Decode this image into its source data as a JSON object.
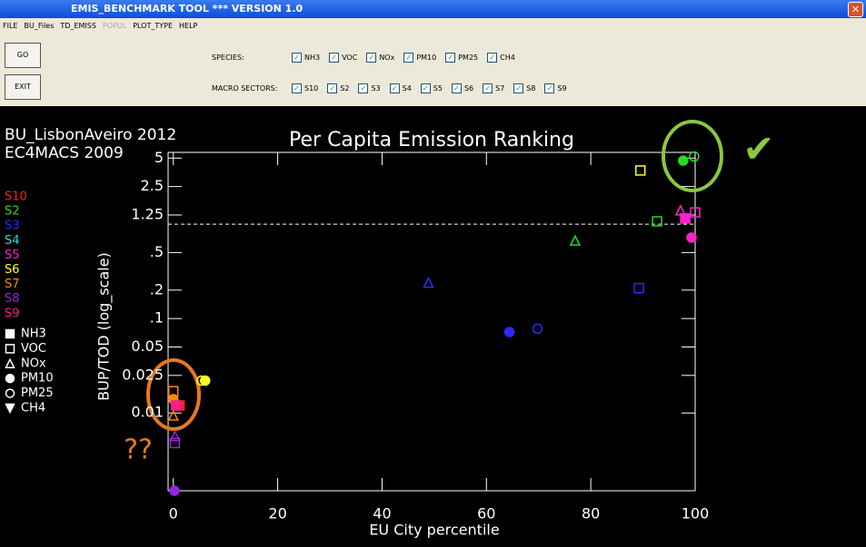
{
  "window": {
    "title": "EMIS_BENCHMARK TOOL *** VERSION 1.0"
  },
  "menu": [
    {
      "label": "FILE",
      "enabled": true
    },
    {
      "label": "BU_Files",
      "enabled": true
    },
    {
      "label": "TD_EMISS",
      "enabled": true
    },
    {
      "label": "POPUL",
      "enabled": false
    },
    {
      "label": "PLOT_TYPE",
      "enabled": true
    },
    {
      "label": "HELP",
      "enabled": true
    }
  ],
  "buttons": [
    "GO",
    "EXIT"
  ],
  "species_panel": {
    "label": "SPECIES:",
    "options": [
      {
        "label": "NH3",
        "checked": true
      },
      {
        "label": "VOC",
        "checked": true
      },
      {
        "label": "NOx",
        "checked": true
      },
      {
        "label": "PM10",
        "checked": true
      },
      {
        "label": "PM25",
        "checked": true
      },
      {
        "label": "CH4",
        "checked": true
      }
    ]
  },
  "sectors_panel": {
    "label": "MACRO SECTORS:",
    "options": [
      {
        "label": "S10",
        "checked": true
      },
      {
        "label": "S2",
        "checked": true
      },
      {
        "label": "S3",
        "checked": true
      },
      {
        "label": "S4",
        "checked": true
      },
      {
        "label": "S5",
        "checked": true
      },
      {
        "label": "S6",
        "checked": true
      },
      {
        "label": "S7",
        "checked": true
      },
      {
        "label": "S8",
        "checked": true
      },
      {
        "label": "S9",
        "checked": true
      }
    ]
  },
  "chart_data": {
    "type": "scatter",
    "title": "Per Capita Emission Ranking",
    "subtitle_lines": [
      "BU_LisbonAveiro 2012",
      "EC4MACS 2009"
    ],
    "xlabel": "EU City percentile",
    "ylabel": "BUP/TOD (log_scale)",
    "xlim": [
      -1,
      100
    ],
    "xticks": [
      0,
      20,
      40,
      60,
      80,
      100
    ],
    "ylim": [
      0.0015,
      5.75
    ],
    "y_log": true,
    "yticks": [
      5,
      2.5,
      1.25,
      {
        "value": 0.5,
        "label": ".5"
      },
      {
        "value": 0.2,
        "label": ".2"
      },
      {
        "value": 0.1,
        "label": ".1"
      },
      0.05,
      0.025,
      0.01
    ],
    "reference_line": 1,
    "species_legend": [
      {
        "name": "NH3",
        "marker": "square",
        "filled": true
      },
      {
        "name": "VOC",
        "marker": "square",
        "filled": false
      },
      {
        "name": "NOx",
        "marker": "triangle",
        "filled": false
      },
      {
        "name": "PM10",
        "marker": "circle",
        "filled": true
      },
      {
        "name": "PM25",
        "marker": "circle",
        "filled": false
      },
      {
        "name": "CH4",
        "marker": "triangle-down",
        "filled": true
      }
    ],
    "series": [
      {
        "name": "S10",
        "color": "#ff2020",
        "x": [
          1.2
        ],
        "values": [
          0.012
        ],
        "species": [
          "NH3"
        ]
      },
      {
        "name": "S2",
        "color": "#22dd22",
        "x": [
          97.7,
          99.8,
          92.7,
          77
        ],
        "values": [
          4.7,
          5.2,
          1.07,
          0.67
        ],
        "species": [
          "PM10",
          "PM25",
          "VOC",
          "NOx"
        ]
      },
      {
        "name": "S3",
        "color": "#2a2aff",
        "x": [
          48.9,
          89.2,
          64.4,
          69.8
        ],
        "values": [
          0.24,
          0.21,
          0.072,
          0.078
        ],
        "species": [
          "NOx",
          "VOC",
          "PM10",
          "PM25"
        ]
      },
      {
        "name": "S4",
        "color": "#22dddd",
        "x": [],
        "values": [],
        "species": []
      },
      {
        "name": "S5",
        "color": "#ff22cc",
        "x": [
          97.2,
          98.1,
          100,
          99.3
        ],
        "values": [
          1.4,
          1.15,
          1.33,
          0.72
        ],
        "species": [
          "NOx",
          "NH3",
          "VOC",
          "PM10"
        ]
      },
      {
        "name": "S6",
        "color": "#ffff22",
        "x": [
          89.5,
          6.1,
          5.4
        ],
        "values": [
          3.7,
          0.022,
          0.022
        ],
        "species": [
          "VOC",
          "PM10",
          "PM25"
        ]
      },
      {
        "name": "S7",
        "color": "#ff8800",
        "x": [
          0,
          0,
          0
        ],
        "values": [
          0.017,
          0.014,
          0.0094
        ],
        "species": [
          "VOC",
          "PM10",
          "NOx"
        ]
      },
      {
        "name": "S8",
        "color": "#9922dd",
        "x": [
          0.3,
          0.3,
          0.2
        ],
        "values": [
          0.0057,
          0.0048,
          0.0015
        ],
        "species": [
          "NOx",
          "VOC",
          "PM10"
        ]
      },
      {
        "name": "S9",
        "color": "#ee2288",
        "x": [
          0.5
        ],
        "values": [
          0.012
        ],
        "species": [
          "NH3"
        ]
      }
    ],
    "annotations": [
      {
        "text": "??",
        "color": "#e8781e"
      },
      {
        "text": "✔",
        "color": "#8dc63f"
      }
    ]
  }
}
